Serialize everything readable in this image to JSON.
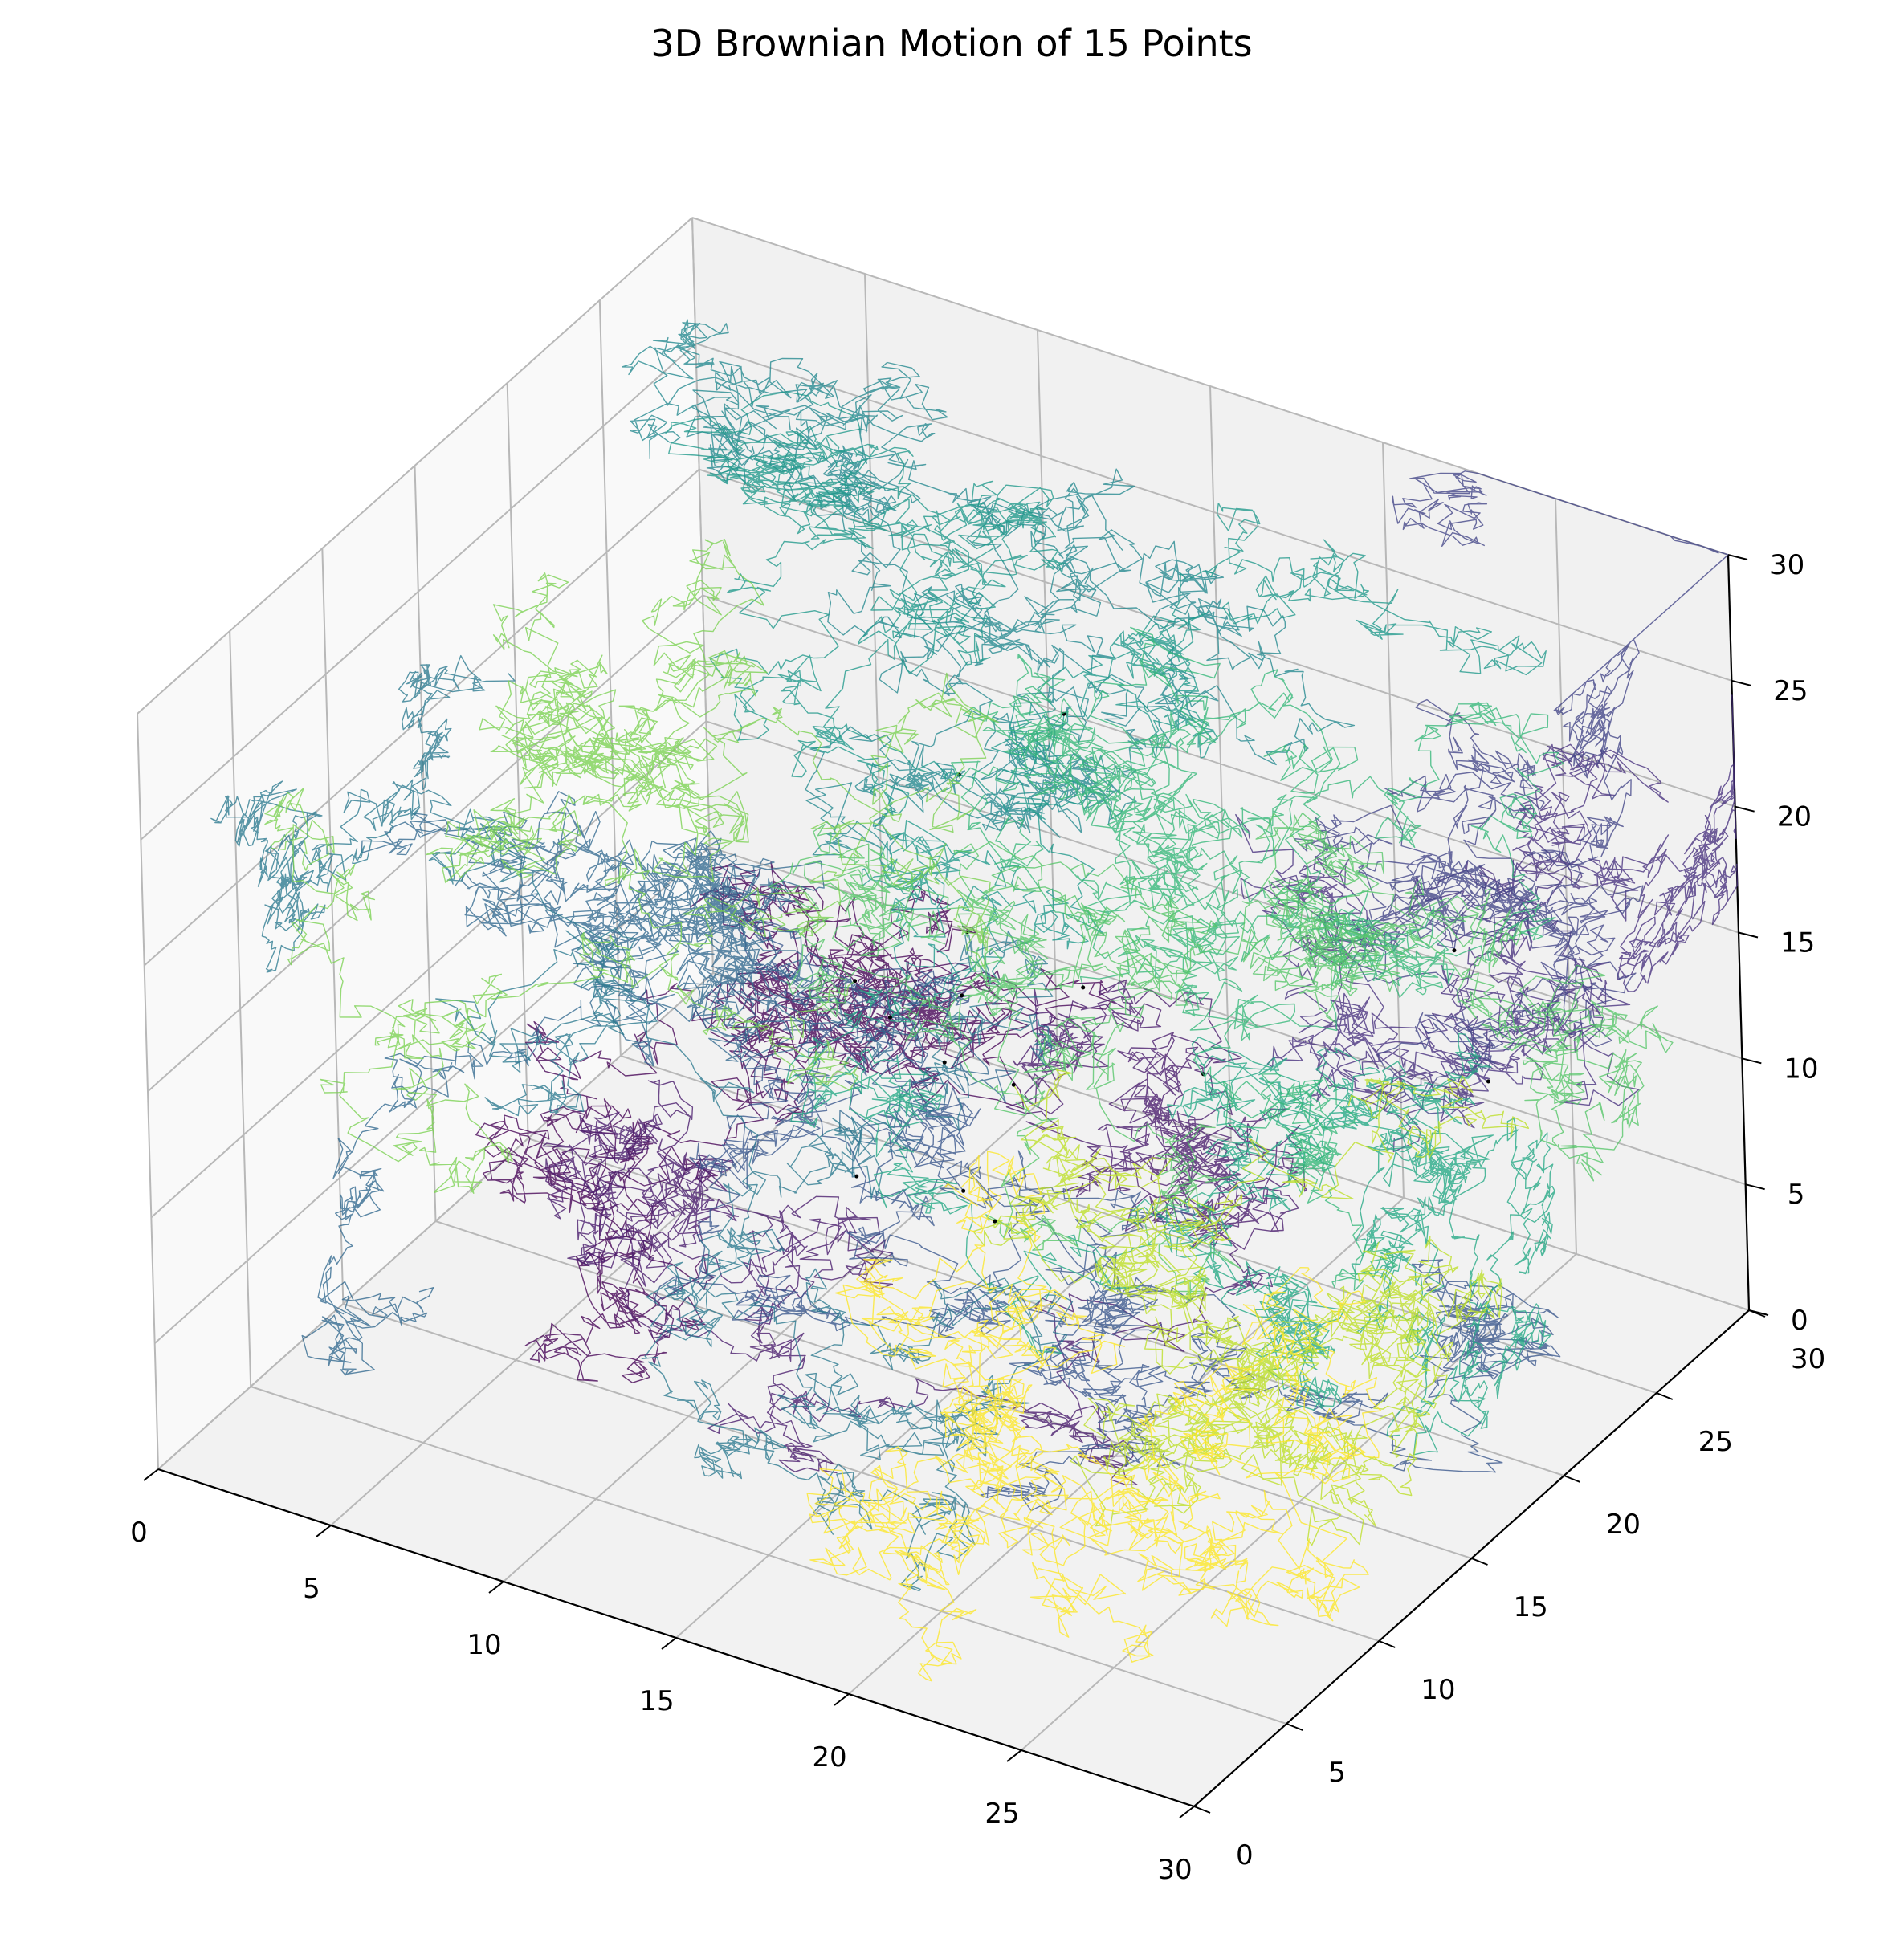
{
  "chart_data": {
    "type": "line",
    "title": "3D Brownian Motion of 15 Points",
    "projection": "3d",
    "grid": true,
    "colormap": "viridis",
    "x_ticks": [
      "0",
      "5",
      "10",
      "15",
      "20",
      "25",
      "30"
    ],
    "y_ticks": [
      "0",
      "5",
      "10",
      "15",
      "20",
      "25",
      "30"
    ],
    "z_ticks": [
      "0",
      "5",
      "10",
      "15",
      "20",
      "25",
      "30"
    ],
    "xlim": [
      0,
      30
    ],
    "ylim": [
      0,
      30
    ],
    "zlim": [
      0,
      30
    ],
    "n_walks": 15,
    "walks": [
      {
        "color": "#440154",
        "start": [
          13,
          20,
          14
        ],
        "end": [
          11,
          9,
          18
        ]
      },
      {
        "color": "#481a6c",
        "start": [
          22,
          16,
          15
        ],
        "end": [
          6,
          12,
          7
        ]
      },
      {
        "color": "#472f7d",
        "start": [
          27,
          22,
          13
        ],
        "end": [
          18,
          26,
          16
        ]
      },
      {
        "color": "#414487",
        "start": [
          25,
          24,
          16
        ],
        "end": [
          24,
          28,
          29
        ]
      },
      {
        "color": "#39568c",
        "start": [
          16,
          14,
          9
        ],
        "end": [
          27,
          20,
          5
        ]
      },
      {
        "color": "#31688e",
        "start": [
          14,
          12,
          10
        ],
        "end": [
          5,
          5,
          6
        ]
      },
      {
        "color": "#2a788e",
        "start": [
          15,
          15,
          13
        ],
        "end": [
          2,
          16,
          22
        ]
      },
      {
        "color": "#23888e",
        "start": [
          14,
          18,
          22
        ],
        "end": [
          3,
          22,
          27
        ]
      },
      {
        "color": "#1f988b",
        "start": [
          16,
          20,
          24
        ],
        "end": [
          20,
          26,
          28
        ]
      },
      {
        "color": "#22a884",
        "start": [
          14,
          14,
          15
        ],
        "end": [
          28,
          15,
          4
        ]
      },
      {
        "color": "#35b779",
        "start": [
          18,
          17,
          16
        ],
        "end": [
          24,
          22,
          5
        ]
      },
      {
        "color": "#54c568",
        "start": [
          15,
          16,
          15
        ],
        "end": [
          28,
          26,
          10
        ]
      },
      {
        "color": "#7ad151",
        "start": [
          13,
          14,
          16
        ],
        "end": [
          1,
          8,
          20
        ]
      },
      {
        "color": "#bddf26",
        "start": [
          17,
          15,
          13
        ],
        "end": [
          24,
          20,
          12
        ]
      },
      {
        "color": "#fde725",
        "start": [
          18,
          12,
          10
        ],
        "end": [
          27,
          3,
          3
        ]
      }
    ]
  }
}
